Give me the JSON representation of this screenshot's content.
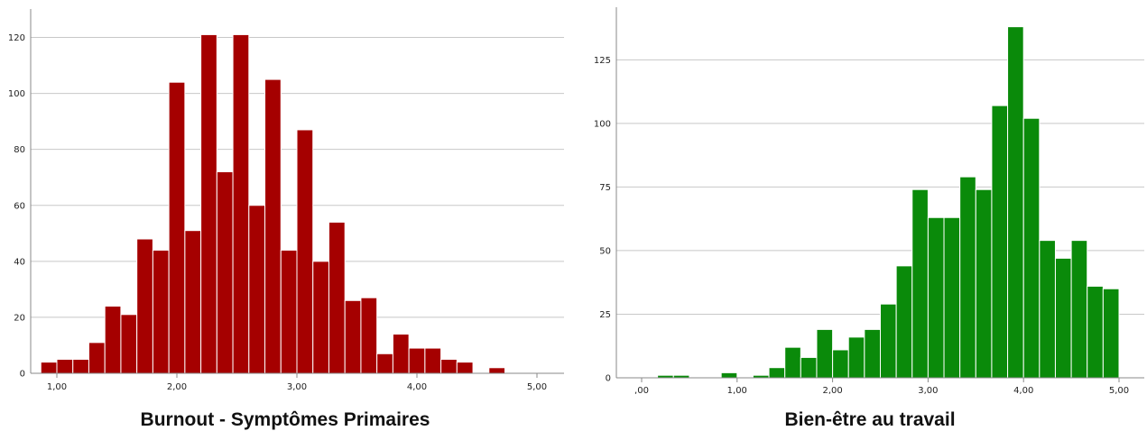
{
  "chart_data": [
    {
      "type": "bar",
      "title": "Burnout - Symptômes Primaires",
      "xlabel": "Burnout - Symptômes Primaires",
      "ylabel": "",
      "color": "#a50000",
      "xlim": [
        1.0,
        5.0
      ],
      "ylim": [
        0,
        125
      ],
      "x_ticks": [
        1.0,
        2.0,
        3.0,
        4.0,
        5.0
      ],
      "x_tick_labels": [
        "1,00",
        "2,00",
        "3,00",
        "4,00",
        "5,00"
      ],
      "y_ticks": [
        0,
        20,
        40,
        60,
        80,
        100,
        120
      ],
      "y_tick_labels": [
        "0",
        "20",
        "40",
        "60",
        "80",
        "100",
        "120"
      ],
      "bin_width": 0.1333,
      "bins": [
        {
          "x": 1.0,
          "value": 4
        },
        {
          "x": 1.1333,
          "value": 5
        },
        {
          "x": 1.2667,
          "value": 5
        },
        {
          "x": 1.4,
          "value": 11
        },
        {
          "x": 1.5333,
          "value": 24
        },
        {
          "x": 1.6667,
          "value": 21
        },
        {
          "x": 1.8,
          "value": 48
        },
        {
          "x": 1.9333,
          "value": 44
        },
        {
          "x": 2.0667,
          "value": 104
        },
        {
          "x": 2.2,
          "value": 51
        },
        {
          "x": 2.3333,
          "value": 121
        },
        {
          "x": 2.4667,
          "value": 72
        },
        {
          "x": 2.6,
          "value": 121
        },
        {
          "x": 2.7333,
          "value": 60
        },
        {
          "x": 2.8667,
          "value": 105
        },
        {
          "x": 3.0,
          "value": 44
        },
        {
          "x": 3.1333,
          "value": 87
        },
        {
          "x": 3.2667,
          "value": 40
        },
        {
          "x": 3.4,
          "value": 54
        },
        {
          "x": 3.5333,
          "value": 26
        },
        {
          "x": 3.6667,
          "value": 27
        },
        {
          "x": 3.8,
          "value": 7
        },
        {
          "x": 3.9333,
          "value": 14
        },
        {
          "x": 4.0667,
          "value": 9
        },
        {
          "x": 4.2,
          "value": 9
        },
        {
          "x": 4.3333,
          "value": 5
        },
        {
          "x": 4.4667,
          "value": 4
        },
        {
          "x": 4.7333,
          "value": 2
        }
      ]
    },
    {
      "type": "bar",
      "title": "Bien-être au travail",
      "xlabel": "Bien-être au travail",
      "ylabel": "",
      "color": "#0a8a0a",
      "xlim": [
        0.0,
        5.0
      ],
      "ylim": [
        0,
        140
      ],
      "x_ticks": [
        0.0,
        1.0,
        2.0,
        3.0,
        4.0,
        5.0
      ],
      "x_tick_labels": [
        ",00",
        "1,00",
        "2,00",
        "3,00",
        "4,00",
        "5,00"
      ],
      "y_ticks": [
        0,
        25,
        50,
        75,
        100,
        125
      ],
      "y_tick_labels": [
        "0",
        "25",
        "50",
        "75",
        "100",
        "125"
      ],
      "bin_width": 0.1667,
      "bins": [
        {
          "x": 0.3333,
          "value": 1
        },
        {
          "x": 0.5,
          "value": 1
        },
        {
          "x": 1.0,
          "value": 2
        },
        {
          "x": 1.3333,
          "value": 1
        },
        {
          "x": 1.5,
          "value": 4
        },
        {
          "x": 1.6667,
          "value": 12
        },
        {
          "x": 1.8333,
          "value": 8
        },
        {
          "x": 2.0,
          "value": 19
        },
        {
          "x": 2.1667,
          "value": 11
        },
        {
          "x": 2.3333,
          "value": 16
        },
        {
          "x": 2.5,
          "value": 19
        },
        {
          "x": 2.6667,
          "value": 29
        },
        {
          "x": 2.8333,
          "value": 44
        },
        {
          "x": 3.0,
          "value": 74
        },
        {
          "x": 3.1667,
          "value": 63
        },
        {
          "x": 3.3333,
          "value": 63
        },
        {
          "x": 3.5,
          "value": 79
        },
        {
          "x": 3.6667,
          "value": 74
        },
        {
          "x": 3.8333,
          "value": 107
        },
        {
          "x": 4.0,
          "value": 138
        },
        {
          "x": 4.1667,
          "value": 102
        },
        {
          "x": 4.3333,
          "value": 54
        },
        {
          "x": 4.5,
          "value": 47
        },
        {
          "x": 4.6667,
          "value": 54
        },
        {
          "x": 4.8333,
          "value": 36
        },
        {
          "x": 5.0,
          "value": 35
        }
      ]
    }
  ]
}
